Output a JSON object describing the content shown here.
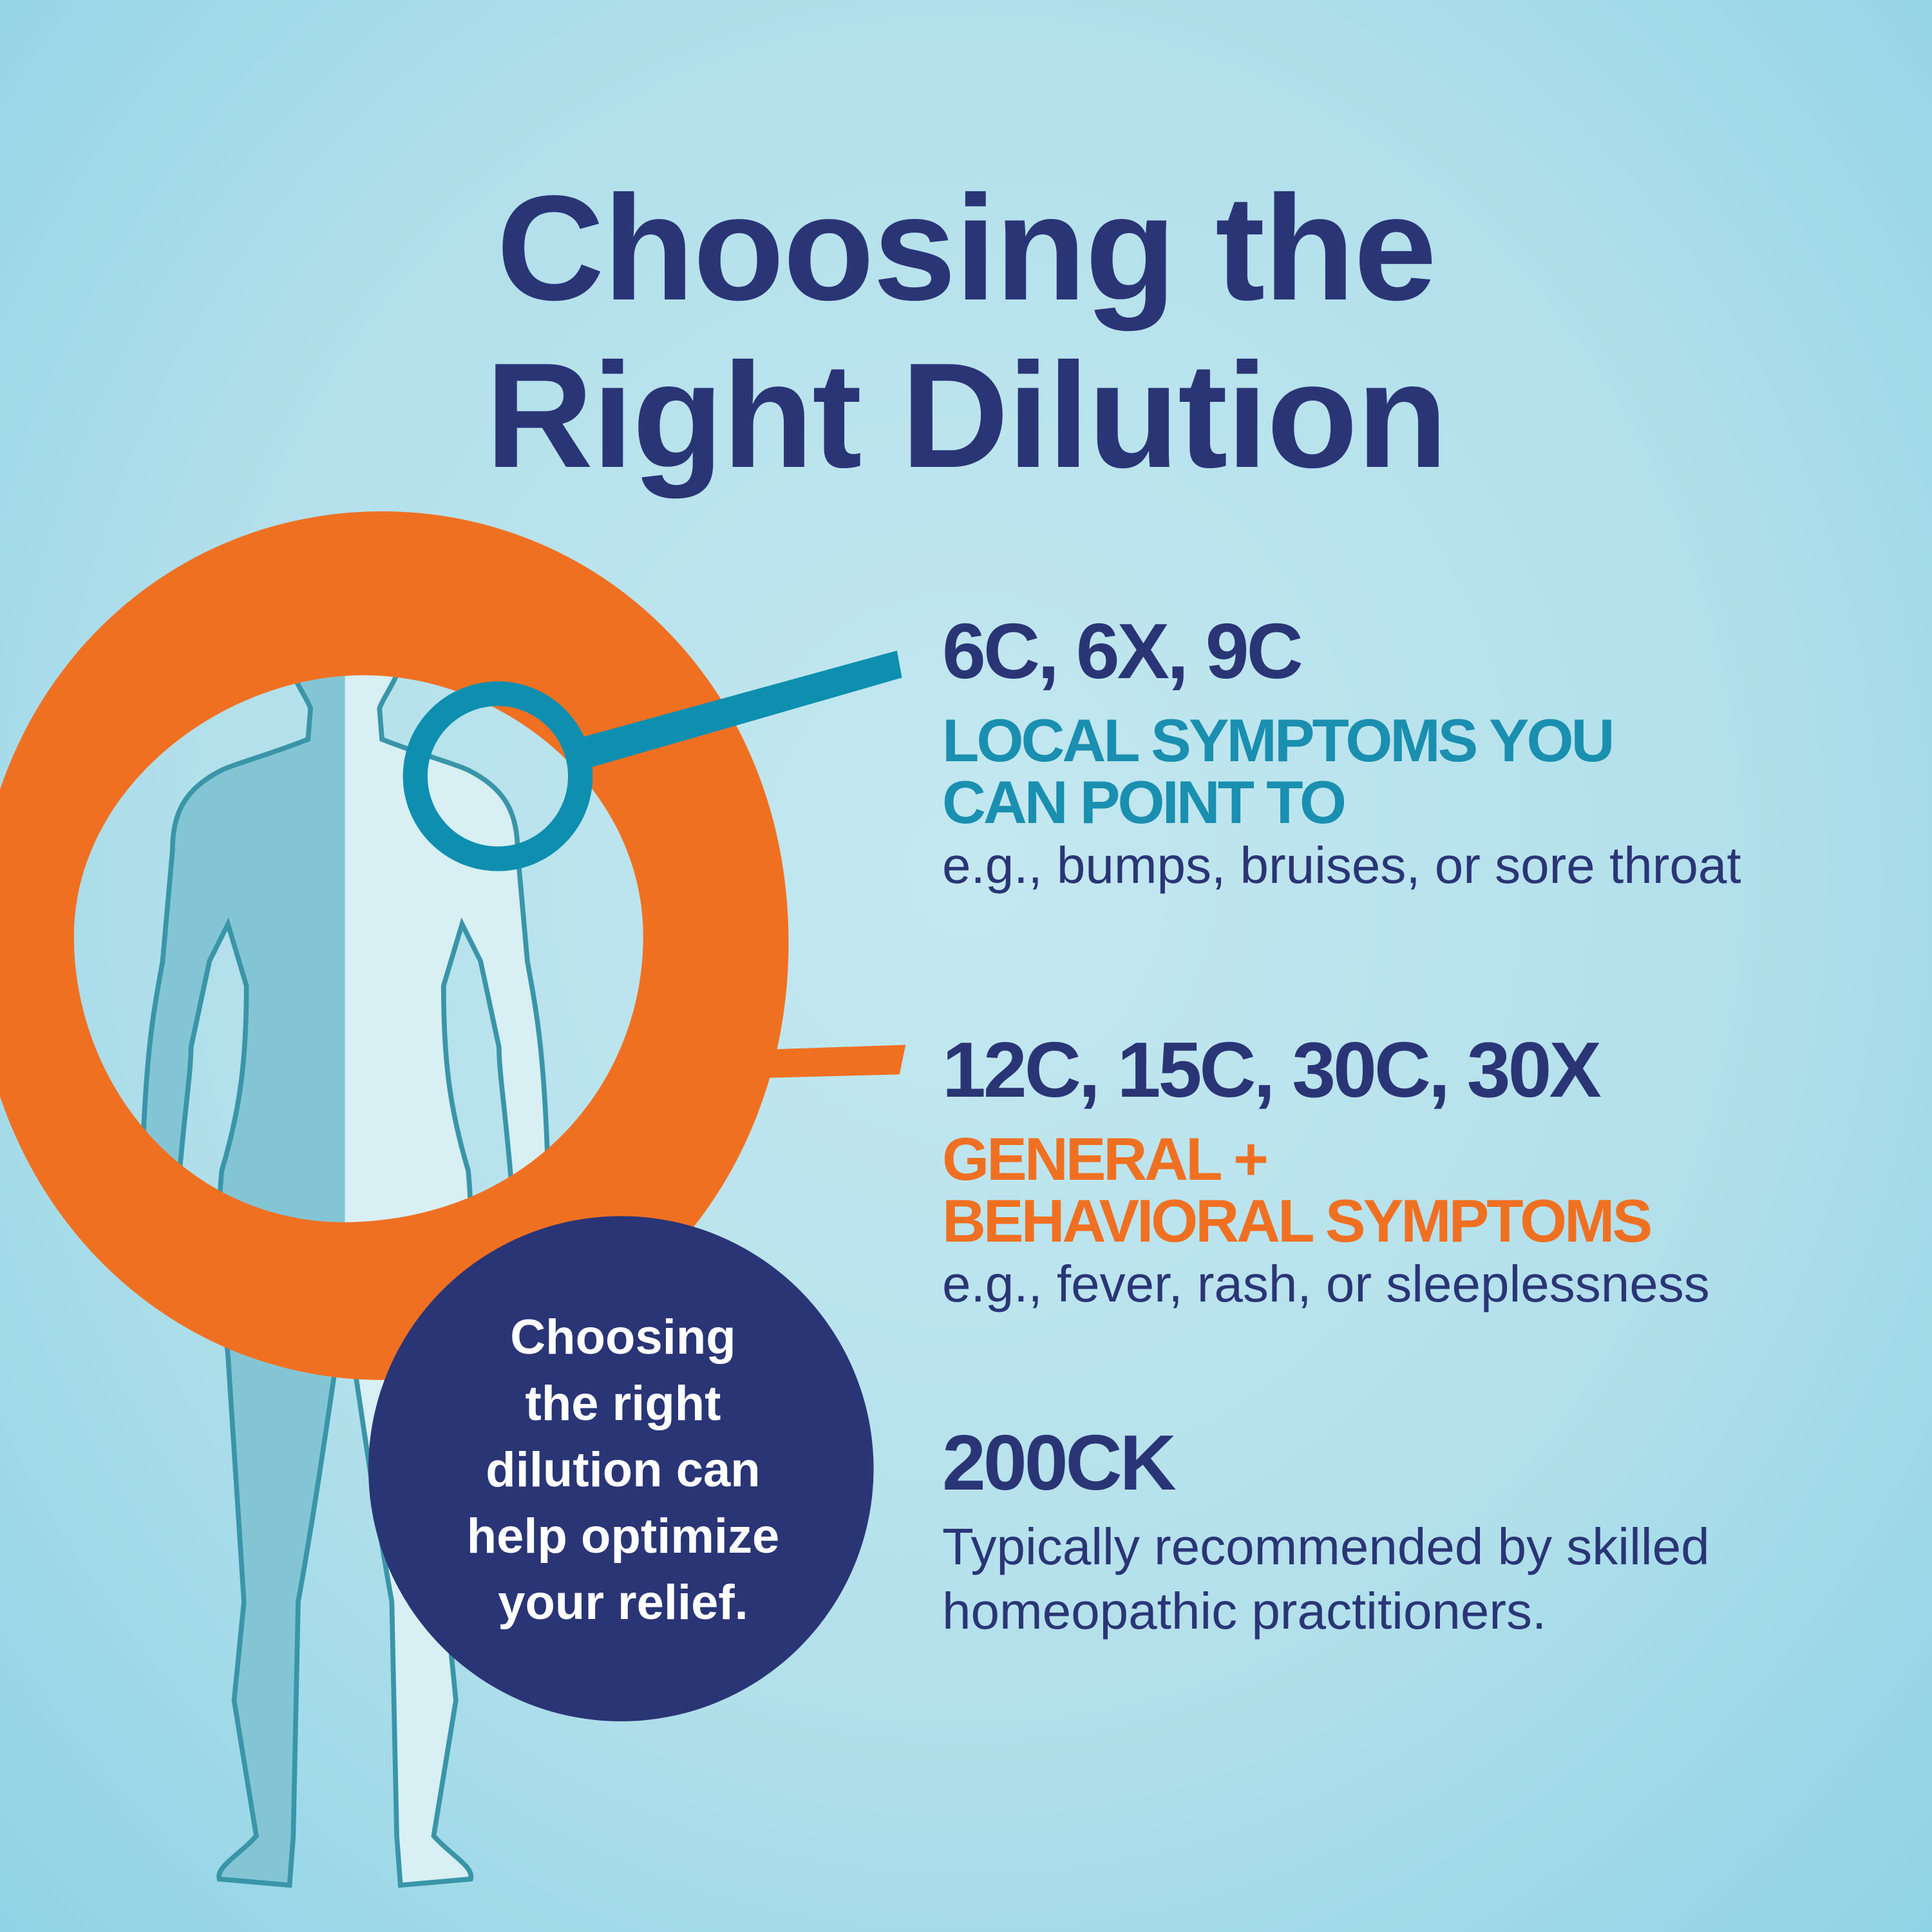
{
  "title": {
    "line1": "Choosing the",
    "line2": "Right Dilution"
  },
  "colors": {
    "navy": "#2a3576",
    "teal": "#1a8fb0",
    "orange": "#f07022",
    "background": "#b3e0eb"
  },
  "sections": [
    {
      "dilutions": "6C, 6X, 9C",
      "category_lines": [
        "LOCAL SYMPTOMS YOU",
        "CAN POINT TO"
      ],
      "example": "e.g., bumps, bruises, or sore throat"
    },
    {
      "dilutions": "12C, 15C, 30C, 30X",
      "category_lines": [
        "GENERAL +",
        "BEHAVIORAL SYMPTOMS"
      ],
      "example": "e.g., fever, rash, or sleeplessness"
    },
    {
      "dilutions": "200CK",
      "description_lines": [
        "Typically recommended by skilled",
        "homeopathic practitioners."
      ]
    }
  ],
  "callout": {
    "lines": [
      "Choosing",
      "the right",
      "dilution can",
      "help optimize",
      "your relief."
    ]
  }
}
